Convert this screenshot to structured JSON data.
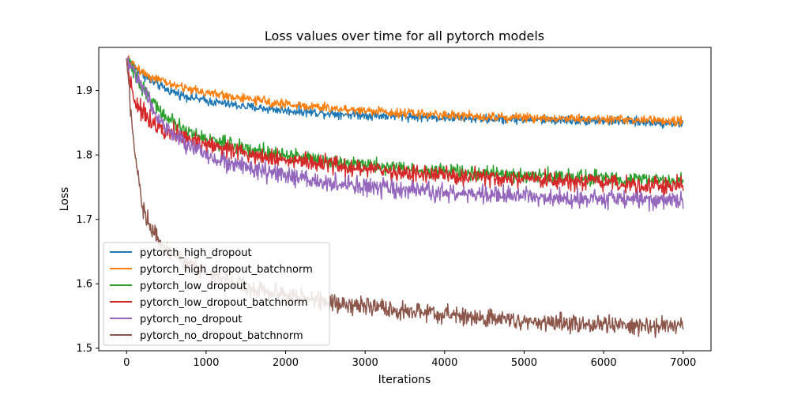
{
  "chart_data": {
    "type": "line",
    "title": "Loss values over time for all pytorch models",
    "xlabel": "Iterations",
    "ylabel": "Loss",
    "xlim": [
      -350,
      7350
    ],
    "ylim": [
      1.496,
      1.967
    ],
    "xticks": [
      0,
      1000,
      2000,
      3000,
      4000,
      5000,
      6000,
      7000
    ],
    "yticks": [
      1.5,
      1.6,
      1.7,
      1.8,
      1.9
    ],
    "xtick_labels": [
      "0",
      "1000",
      "2000",
      "3000",
      "4000",
      "5000",
      "6000",
      "7000"
    ],
    "ytick_labels": [
      "1.5",
      "1.6",
      "1.7",
      "1.8",
      "1.9"
    ],
    "grid": false,
    "legend_position": "lower-left",
    "series": [
      {
        "name": "pytorch_high_dropout",
        "color": "#1f77b4",
        "noise": 0.0035,
        "x": [
          0,
          100,
          200,
          300,
          500,
          700,
          1000,
          1500,
          2000,
          2500,
          3000,
          3500,
          4000,
          4500,
          5000,
          5500,
          6000,
          6500,
          7000
        ],
        "y": [
          1.95,
          1.937,
          1.925,
          1.915,
          1.902,
          1.893,
          1.884,
          1.875,
          1.869,
          1.865,
          1.862,
          1.86,
          1.858,
          1.856,
          1.855,
          1.854,
          1.853,
          1.851,
          1.849
        ]
      },
      {
        "name": "pytorch_high_dropout_batchnorm",
        "color": "#ff7f0e",
        "noise": 0.0035,
        "x": [
          0,
          100,
          200,
          300,
          500,
          700,
          1000,
          1500,
          2000,
          2500,
          3000,
          3500,
          4000,
          4500,
          5000,
          5500,
          6000,
          6500,
          7000
        ],
        "y": [
          1.95,
          1.938,
          1.929,
          1.922,
          1.912,
          1.905,
          1.897,
          1.887,
          1.879,
          1.873,
          1.869,
          1.865,
          1.862,
          1.86,
          1.858,
          1.857,
          1.856,
          1.854,
          1.852
        ]
      },
      {
        "name": "pytorch_low_dropout",
        "color": "#2ca02c",
        "noise": 0.0055,
        "x": [
          0,
          100,
          200,
          300,
          400,
          500,
          700,
          1000,
          1500,
          2000,
          2500,
          3000,
          3500,
          4000,
          4500,
          5000,
          5500,
          6000,
          6500,
          7000
        ],
        "y": [
          1.95,
          1.925,
          1.905,
          1.888,
          1.872,
          1.857,
          1.84,
          1.825,
          1.81,
          1.8,
          1.792,
          1.785,
          1.779,
          1.775,
          1.771,
          1.768,
          1.766,
          1.764,
          1.762,
          1.76
        ]
      },
      {
        "name": "pytorch_low_dropout_batchnorm",
        "color": "#d62728",
        "noise": 0.007,
        "x": [
          0,
          50,
          100,
          200,
          300,
          400,
          500,
          600,
          700,
          1000,
          1500,
          2000,
          2500,
          3000,
          3500,
          4000,
          4500,
          5000,
          5500,
          6000,
          6500,
          7000
        ],
        "y": [
          1.95,
          1.915,
          1.885,
          1.866,
          1.855,
          1.847,
          1.84,
          1.834,
          1.828,
          1.817,
          1.803,
          1.793,
          1.785,
          1.778,
          1.772,
          1.768,
          1.764,
          1.761,
          1.758,
          1.756,
          1.754,
          1.752
        ]
      },
      {
        "name": "pytorch_no_dropout",
        "color": "#9467bd",
        "noise": 0.007,
        "x": [
          0,
          100,
          200,
          300,
          400,
          500,
          700,
          1000,
          1500,
          2000,
          2500,
          3000,
          3500,
          4000,
          4500,
          5000,
          5500,
          6000,
          6500,
          7000
        ],
        "y": [
          1.95,
          1.928,
          1.905,
          1.88,
          1.858,
          1.84,
          1.82,
          1.8,
          1.78,
          1.767,
          1.757,
          1.75,
          1.745,
          1.741,
          1.738,
          1.736,
          1.734,
          1.732,
          1.731,
          1.729
        ]
      },
      {
        "name": "pytorch_no_dropout_batchnorm",
        "color": "#8c564b",
        "noise": 0.007,
        "x": [
          0,
          50,
          100,
          150,
          200,
          300,
          400,
          500,
          600,
          700,
          800,
          1000,
          1200,
          1500,
          2000,
          2500,
          3000,
          3500,
          4000,
          4500,
          5000,
          5500,
          6000,
          6500,
          7000
        ],
        "y": [
          1.95,
          1.87,
          1.8,
          1.76,
          1.72,
          1.69,
          1.67,
          1.655,
          1.645,
          1.637,
          1.63,
          1.618,
          1.608,
          1.596,
          1.582,
          1.572,
          1.564,
          1.557,
          1.552,
          1.547,
          1.543,
          1.54,
          1.537,
          1.535,
          1.533
        ]
      }
    ]
  }
}
